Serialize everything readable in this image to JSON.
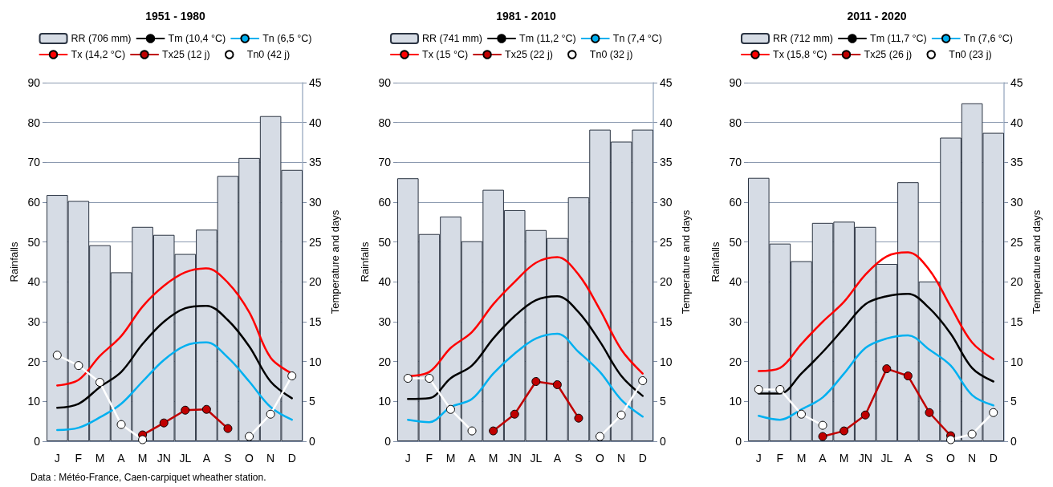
{
  "chart_data": [
    {
      "type": "bar",
      "title": "1951 - 1980",
      "ylabel": "Rainfalls",
      "y2label": "Temperature and days",
      "categories": [
        "J",
        "F",
        "M",
        "A",
        "M",
        "JN",
        "JL",
        "A",
        "S",
        "O",
        "N",
        "D"
      ],
      "ylim": [
        0,
        90
      ],
      "yticks": [
        0,
        10,
        20,
        30,
        40,
        50,
        60,
        70,
        80,
        90
      ],
      "y2lim": [
        0,
        45
      ],
      "y2ticks": [
        0,
        5,
        10,
        15,
        20,
        25,
        30,
        35,
        40,
        45
      ],
      "grid": "y",
      "legend": "top",
      "annotations": [
        "Data : Météo-France, Caen-carpiquet wheather station."
      ],
      "series": [
        {
          "name": "RR (706 mm)",
          "color": "#d6dce5",
          "values": [
            61.8,
            60.3,
            49.2,
            42.4,
            53.8,
            51.8,
            47.0,
            53.1,
            66.6,
            71.1,
            81.6,
            68.1
          ]
        },
        {
          "name": "Tm (10,4 °C)",
          "type": "line",
          "axis": "y2",
          "marker": "none",
          "color": "#000000",
          "values": [
            4.2,
            4.7,
            6.8,
            8.7,
            12.2,
            15.0,
            16.7,
            17.0,
            15.2,
            11.9,
            7.5,
            5.4
          ]
        },
        {
          "name": "Tn (6,5 °C)",
          "type": "line",
          "axis": "y2",
          "marker": "none",
          "color": "#00b0f0",
          "values": [
            1.4,
            1.7,
            3.0,
            4.7,
            7.5,
            10.2,
            12.0,
            12.4,
            10.5,
            7.5,
            4.3,
            2.7
          ]
        },
        {
          "name": "Tx (14,2 °C)",
          "type": "line",
          "axis": "y2",
          "marker": "none",
          "color": "#ff0000",
          "values": [
            7.0,
            7.7,
            10.7,
            13.2,
            16.9,
            19.5,
            21.2,
            21.7,
            19.9,
            16.2,
            10.5,
            8.5
          ]
        },
        {
          "name": "Tx25 (12 j)",
          "type": "line",
          "axis": "y2",
          "marker": "circle",
          "color": "#c00000",
          "values": [
            null,
            null,
            null,
            null,
            0.8,
            2.3,
            3.9,
            4.0,
            1.6,
            null,
            null,
            null
          ]
        },
        {
          "name": "Tn0 (42 j)",
          "type": "line",
          "axis": "y2",
          "marker": "circle",
          "color": "#ffffff",
          "values": [
            10.8,
            9.5,
            7.4,
            2.1,
            0.2,
            null,
            null,
            null,
            null,
            0.6,
            3.4,
            8.2
          ]
        }
      ]
    },
    {
      "type": "bar",
      "title": "1981 - 2010",
      "ylabel": "Rainfalls",
      "y2label": "Temperature and days",
      "categories": [
        "J",
        "F",
        "M",
        "A",
        "M",
        "JN",
        "JL",
        "A",
        "S",
        "O",
        "N",
        "D"
      ],
      "ylim": [
        0,
        90
      ],
      "yticks": [
        0,
        10,
        20,
        30,
        40,
        50,
        60,
        70,
        80,
        90
      ],
      "y2lim": [
        0,
        45
      ],
      "y2ticks": [
        0,
        5,
        10,
        15,
        20,
        25,
        30,
        35,
        40,
        45
      ],
      "grid": "y",
      "legend": "top",
      "series": [
        {
          "name": "RR (741 mm)",
          "color": "#d6dce5",
          "values": [
            66.0,
            52.0,
            56.4,
            50.2,
            63.1,
            58.0,
            53.0,
            51.0,
            61.2,
            78.2,
            75.2,
            78.2
          ]
        },
        {
          "name": "Tm (11,2 °C)",
          "type": "line",
          "axis": "y2",
          "marker": "none",
          "color": "#000000",
          "values": [
            5.3,
            5.4,
            7.9,
            9.5,
            12.9,
            15.7,
            17.7,
            18.2,
            16.2,
            12.5,
            8.2,
            5.7
          ]
        },
        {
          "name": "Tn (7,4 °C)",
          "type": "line",
          "axis": "y2",
          "marker": "none",
          "color": "#00b0f0",
          "values": [
            2.7,
            2.4,
            4.3,
            5.3,
            8.5,
            11.0,
            12.9,
            13.5,
            11.2,
            8.7,
            5.2,
            3.1
          ]
        },
        {
          "name": "Tx (15 °C)",
          "type": "line",
          "axis": "y2",
          "marker": "none",
          "color": "#ff0000",
          "values": [
            8.2,
            8.7,
            11.7,
            13.7,
            17.2,
            20.0,
            22.4,
            23.1,
            20.9,
            16.5,
            11.5,
            8.5
          ]
        },
        {
          "name": "Tx25 (22 j)",
          "type": "line",
          "axis": "y2",
          "marker": "circle",
          "color": "#c00000",
          "values": [
            null,
            null,
            null,
            null,
            1.3,
            3.4,
            7.5,
            7.1,
            2.9,
            null,
            null,
            null
          ]
        },
        {
          "name": "Tn0 (32 j)",
          "type": "line",
          "axis": "y2",
          "marker": "circle",
          "color": "#ffffff",
          "values": [
            7.9,
            7.9,
            4.0,
            1.3,
            null,
            null,
            null,
            null,
            null,
            0.6,
            3.3,
            7.6
          ]
        }
      ]
    },
    {
      "type": "bar",
      "title": "2011 - 2020",
      "ylabel": "Rainfalls",
      "y2label": "Temperature and days",
      "categories": [
        "J",
        "F",
        "M",
        "A",
        "M",
        "JN",
        "JL",
        "A",
        "S",
        "O",
        "N",
        "D"
      ],
      "ylim": [
        0,
        90
      ],
      "yticks": [
        0,
        10,
        20,
        30,
        40,
        50,
        60,
        70,
        80,
        90
      ],
      "y2lim": [
        0,
        45
      ],
      "y2ticks": [
        0,
        5,
        10,
        15,
        20,
        25,
        30,
        35,
        40,
        45
      ],
      "grid": "y",
      "legend": "top",
      "series": [
        {
          "name": "RR (712 mm)",
          "color": "#d6dce5",
          "values": [
            66.1,
            49.6,
            45.2,
            54.8,
            55.1,
            53.8,
            44.5,
            65.0,
            40.1,
            76.2,
            84.8,
            77.4
          ]
        },
        {
          "name": "Tm (11,7 °C)",
          "type": "line",
          "axis": "y2",
          "marker": "none",
          "color": "#000000",
          "values": [
            6.0,
            6.0,
            8.5,
            11.2,
            14.2,
            17.2,
            18.2,
            18.5,
            16.7,
            13.5,
            9.2,
            7.5
          ]
        },
        {
          "name": "Tn (7,6 °C)",
          "type": "line",
          "axis": "y2",
          "marker": "none",
          "color": "#00b0f0",
          "values": [
            3.2,
            2.7,
            4.0,
            5.5,
            8.5,
            11.7,
            12.9,
            13.3,
            11.5,
            9.5,
            5.8,
            4.5
          ]
        },
        {
          "name": "Tx (15,8 °C)",
          "type": "line",
          "axis": "y2",
          "marker": "none",
          "color": "#ff0000",
          "values": [
            8.8,
            9.2,
            12.2,
            15.0,
            17.5,
            20.9,
            23.2,
            23.7,
            21.5,
            16.9,
            12.4,
            10.3
          ]
        },
        {
          "name": "Tx25 (26 j)",
          "type": "line",
          "axis": "y2",
          "marker": "circle",
          "color": "#c00000",
          "values": [
            null,
            null,
            null,
            0.6,
            1.3,
            3.3,
            9.1,
            8.2,
            3.6,
            0.7,
            null,
            null
          ]
        },
        {
          "name": "Tn0 (23 j)",
          "type": "line",
          "axis": "y2",
          "marker": "circle",
          "color": "#ffffff",
          "values": [
            6.5,
            6.5,
            3.4,
            2.0,
            null,
            null,
            null,
            null,
            null,
            0.2,
            0.9,
            3.6
          ]
        }
      ]
    }
  ]
}
